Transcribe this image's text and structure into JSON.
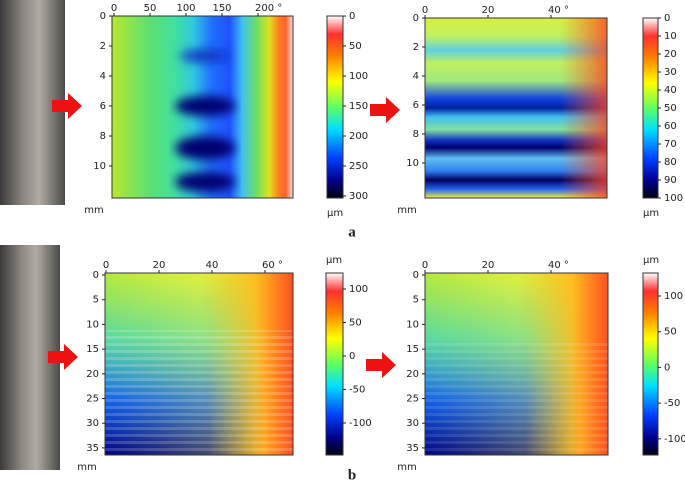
{
  "panels": [
    {
      "label": "a",
      "maps": [
        {
          "xticks": [
            0,
            50,
            100,
            150,
            "200 °"
          ],
          "yticks": [
            0,
            2,
            4,
            6,
            8,
            10
          ],
          "yunit": "mm",
          "colorbar": {
            "ticks": [
              0,
              50,
              100,
              150,
              200,
              250,
              300
            ],
            "unit": "µm"
          }
        },
        {
          "xticks": [
            0,
            20,
            "40 °"
          ],
          "yticks": [
            0,
            2,
            4,
            6,
            8,
            10
          ],
          "yunit": "mm",
          "colorbar": {
            "ticks": [
              0,
              10,
              20,
              30,
              40,
              50,
              60,
              70,
              80,
              90,
              100
            ],
            "unit": "µm"
          }
        }
      ]
    },
    {
      "label": "b",
      "maps": [
        {
          "xticks": [
            0,
            20,
            40,
            "60 °"
          ],
          "yticks": [
            0,
            5,
            10,
            15,
            20,
            25,
            30,
            35
          ],
          "yunit": "mm",
          "colorbar": {
            "ticks": [
              100,
              50,
              0,
              -50,
              -100
            ],
            "unit": "µm"
          }
        },
        {
          "xticks": [
            0,
            20,
            "40 °"
          ],
          "yticks": [
            0,
            5,
            10,
            15,
            20,
            25,
            30,
            35
          ],
          "yunit": "mm",
          "colorbar": {
            "ticks": [
              100,
              50,
              0,
              -50,
              -100
            ],
            "unit": "µm"
          }
        }
      ]
    }
  ]
}
